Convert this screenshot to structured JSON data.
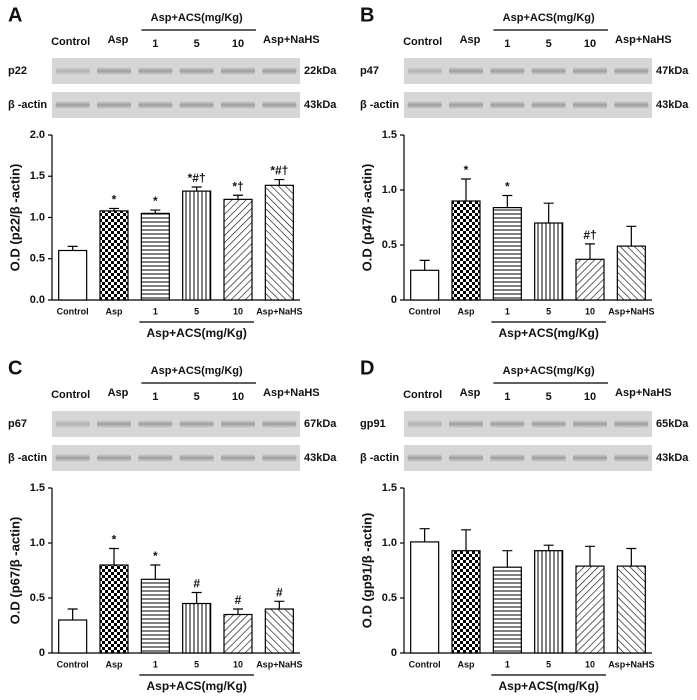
{
  "chart_data": [
    {
      "type": "bar",
      "panel": "A",
      "header": {
        "control": "Control",
        "asp": "Asp",
        "group": "Asp+ACS(mg/Kg)",
        "doses": [
          "1",
          "5",
          "10"
        ],
        "nahs": "Asp+NaHS"
      },
      "blots": [
        {
          "protein": "p22",
          "size": "22kDa"
        },
        {
          "protein": "β -actin",
          "size": "43kDa"
        }
      ],
      "ylabel": "O.D (p22/β -actin)",
      "categories": [
        "Control",
        "Asp",
        "1",
        "5",
        "10",
        "Asp+NaHS"
      ],
      "group_label": "Asp+ACS(mg/Kg)",
      "values": [
        0.6,
        1.08,
        1.05,
        1.32,
        1.22,
        1.39
      ],
      "errors": [
        0.05,
        0.03,
        0.04,
        0.05,
        0.05,
        0.07
      ],
      "annotations": [
        null,
        "*",
        "*",
        "*#†",
        "*†",
        "*#†"
      ],
      "ylim": [
        0,
        2
      ],
      "yticks": [
        {
          "value": 0,
          "label": "0.0"
        },
        0.5,
        {
          "value": 1,
          "label": "1.0"
        },
        1.5,
        {
          "value": 2,
          "label": "2.0"
        }
      ]
    },
    {
      "type": "bar",
      "panel": "B",
      "header": {
        "control": "Control",
        "asp": "Asp",
        "group": "Asp+ACS(mg/Kg)",
        "doses": [
          "1",
          "5",
          "10"
        ],
        "nahs": "Asp+NaHS"
      },
      "blots": [
        {
          "protein": "p47",
          "size": "47kDa"
        },
        {
          "protein": "β -actin",
          "size": "43kDa"
        }
      ],
      "ylabel": "O.D (p47/β -actin)",
      "categories": [
        "Control",
        "Asp",
        "1",
        "5",
        "10",
        "Asp+NaHS"
      ],
      "group_label": "Asp+ACS(mg/Kg)",
      "values": [
        0.27,
        0.9,
        0.84,
        0.7,
        0.37,
        0.49
      ],
      "errors": [
        0.09,
        0.2,
        0.11,
        0.18,
        0.14,
        0.18
      ],
      "annotations": [
        null,
        "*",
        "*",
        null,
        "#†",
        null
      ],
      "ylim": [
        0,
        1.5
      ],
      "yticks": [
        0,
        0.5,
        {
          "value": 1,
          "label": "1.0"
        },
        1.5
      ]
    },
    {
      "type": "bar",
      "panel": "C",
      "header": {
        "control": "Control",
        "asp": "Asp",
        "group": "Asp+ACS(mg/Kg)",
        "doses": [
          "1",
          "5",
          "10"
        ],
        "nahs": "Asp+NaHS"
      },
      "blots": [
        {
          "protein": "p67",
          "size": "67kDa"
        },
        {
          "protein": "β -actin",
          "size": "43kDa"
        }
      ],
      "ylabel": "O.D (p67/β -actin)",
      "categories": [
        "Control",
        "Asp",
        "1",
        "5",
        "10",
        "Asp+NaHS"
      ],
      "group_label": "Asp+ACS(mg/Kg)",
      "values": [
        0.3,
        0.8,
        0.67,
        0.45,
        0.35,
        0.4
      ],
      "errors": [
        0.1,
        0.15,
        0.13,
        0.1,
        0.05,
        0.07
      ],
      "annotations": [
        null,
        "*",
        "*",
        "#",
        "#",
        "#"
      ],
      "ylim": [
        0,
        1.5
      ],
      "yticks": [
        0,
        0.5,
        {
          "value": 1,
          "label": "1.0"
        },
        1.5
      ]
    },
    {
      "type": "bar",
      "panel": "D",
      "header": {
        "control": "Control",
        "asp": "Asp",
        "group": "Asp+ACS(mg/Kg)",
        "doses": [
          "1",
          "5",
          "10"
        ],
        "nahs": "Asp+NaHS"
      },
      "blots": [
        {
          "protein": "gp91",
          "size": "65kDa"
        },
        {
          "protein": "β -actin",
          "size": "43kDa"
        }
      ],
      "ylabel": "O.D (gp91/β -actin)",
      "categories": [
        "Control",
        "Asp",
        "1",
        "5",
        "10",
        "Asp+NaHS"
      ],
      "group_label": "Asp+ACS(mg/Kg)",
      "values": [
        1.01,
        0.93,
        0.78,
        0.93,
        0.79,
        0.79
      ],
      "errors": [
        0.12,
        0.19,
        0.15,
        0.05,
        0.18,
        0.16
      ],
      "ylim": [
        0,
        1.5
      ],
      "yticks": [
        0,
        0.5,
        {
          "value": 1,
          "label": "1.0"
        },
        1.5
      ]
    }
  ]
}
